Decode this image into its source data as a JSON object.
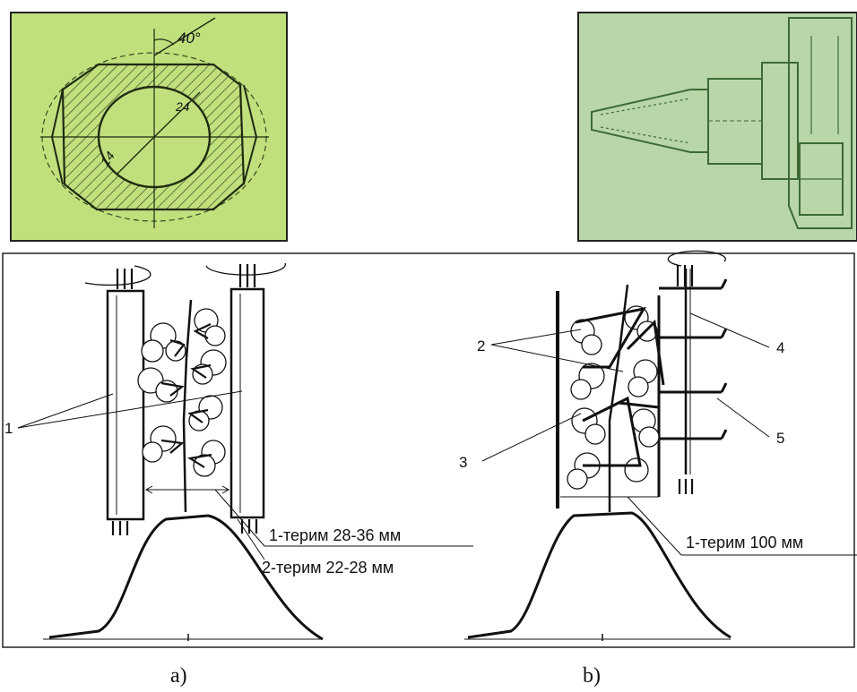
{
  "top_left_drawing": {
    "angle_label": "40°",
    "dim_outer": "24",
    "dim_inner": "14",
    "bg_color": "#bfe07c"
  },
  "top_right_drawing": {
    "bg_color": "#b9d6a8"
  },
  "panel_a": {
    "caption": "a)",
    "callout": "1",
    "spec_1": "1-терим   28-36 мм",
    "spec_2": "2-терим 22-28 мм"
  },
  "panel_b": {
    "caption": "b)",
    "callouts": [
      "2",
      "3",
      "4",
      "5"
    ],
    "spec_1": "1-терим 100 мм"
  }
}
